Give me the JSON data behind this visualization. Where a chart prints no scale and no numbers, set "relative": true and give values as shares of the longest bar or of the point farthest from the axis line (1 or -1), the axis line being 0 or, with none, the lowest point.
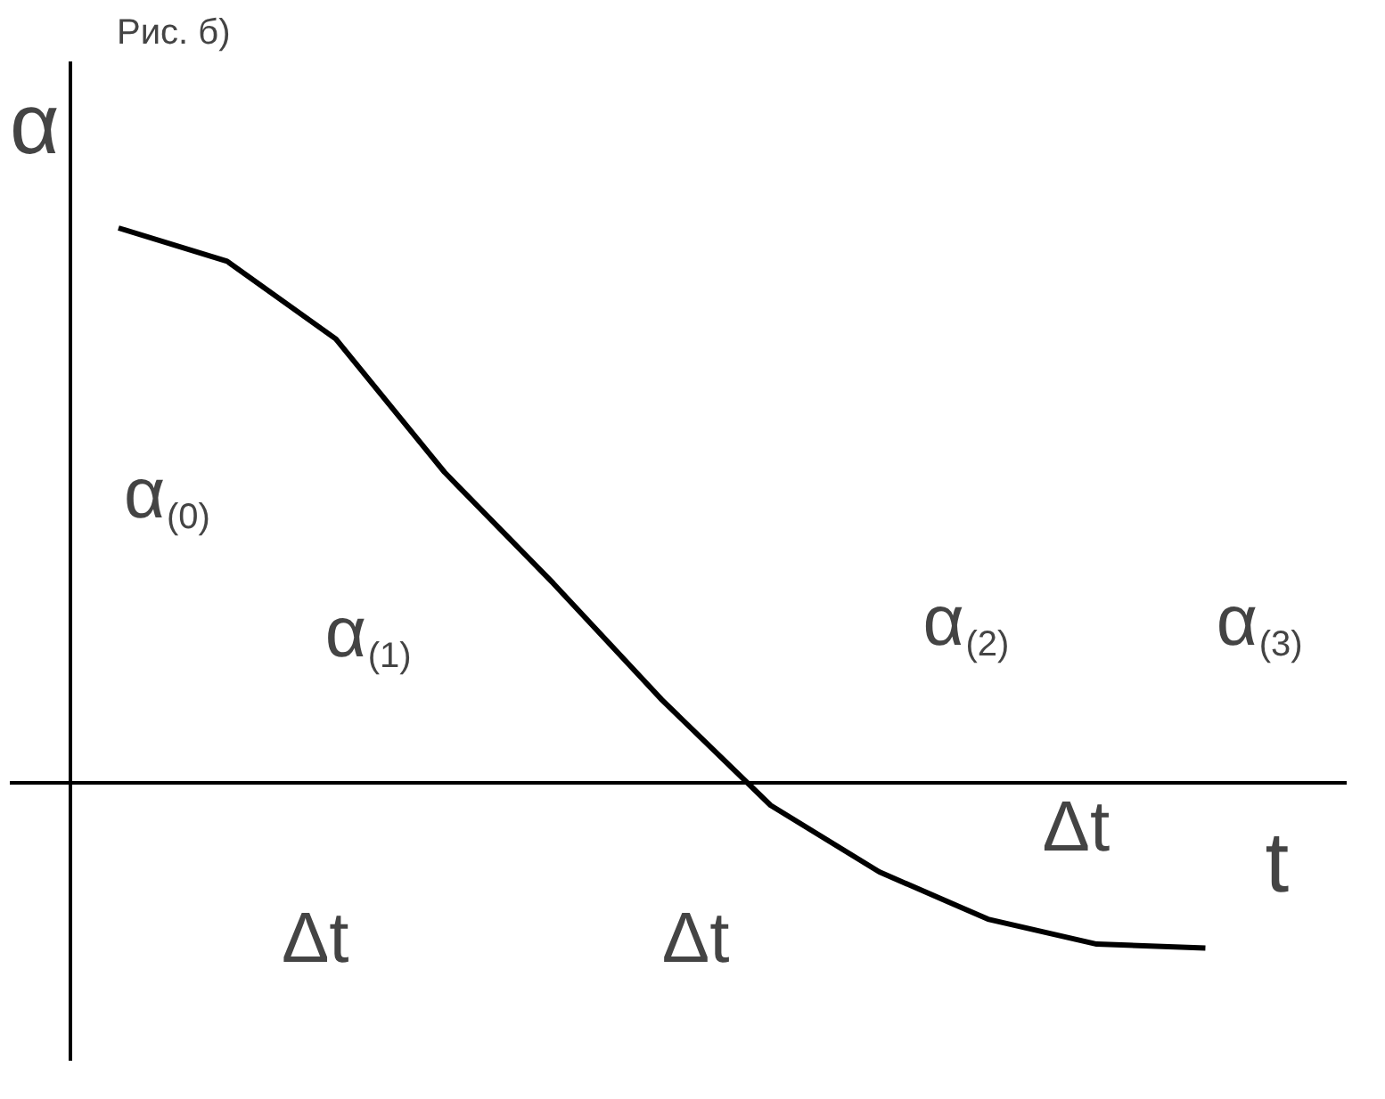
{
  "chart_data": {
    "type": "line",
    "relative": true,
    "title": "Рис. б)",
    "ylabel": "α",
    "xlabel": "t",
    "categories": [
      null,
      null,
      null,
      null,
      null,
      null,
      null,
      null,
      null,
      null,
      null
    ],
    "series": [
      {
        "color": "#000000",
        "values": [
          1.0,
          0.94,
          0.8,
          0.56,
          0.36,
          0.15,
          -0.04,
          -0.16,
          -0.245,
          -0.29,
          -0.297
        ]
      }
    ],
    "annotations": [
      "α$_{(0)}$",
      "α$_{(1)}$",
      "α$_{(2)}$",
      "α$_{(3)}$",
      "Δt",
      "Δt",
      "Δt"
    ],
    "marker": "none",
    "line_style": "solid"
  }
}
